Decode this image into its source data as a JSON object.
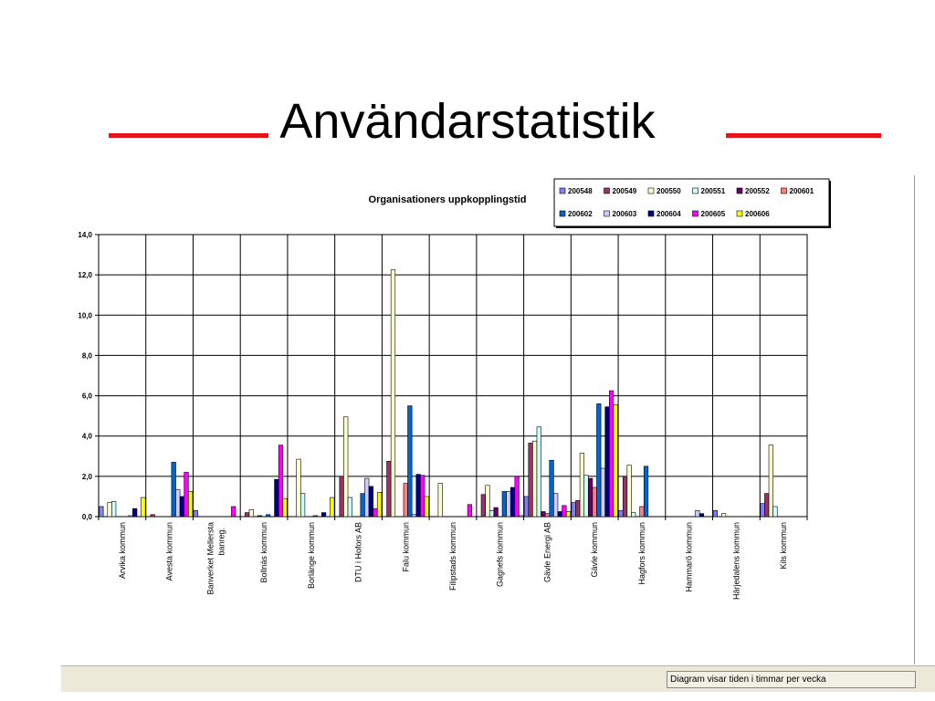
{
  "slide": {
    "title": "Användarstatistik",
    "accent_color": "#e8141b"
  },
  "status_bar": {
    "note": "Diagram visar tiden i timmar per vecka"
  },
  "chart_data": {
    "type": "bar",
    "title": "Organisationers uppkopplingstid",
    "xlabel": "",
    "ylabel": "",
    "ylim": [
      0,
      14
    ],
    "yticks": [
      "0,0",
      "2,0",
      "4,0",
      "6,0",
      "8,0",
      "10,0",
      "12,0",
      "14,0"
    ],
    "grid": true,
    "legend_position": "top-right",
    "categories": [
      "Arvika kommun",
      "Avesta kommun",
      "Banverket Mellersta banreg.",
      "Bollnäs kommun",
      "Borlänge kommun",
      "DTU i Hofors AB",
      "Falu kommun",
      "Filipstads kommun",
      "Gagnefs kommun",
      "Gävle Energi AB",
      "Gävle kommun",
      "Hagfors kommun",
      "Hammarö kommun",
      "Härjedalens kommun",
      "Kils kommun"
    ],
    "series": [
      {
        "name": "200548",
        "color": "#8080ff",
        "values": [
          0.5,
          0.0,
          0.3,
          0.0,
          0.0,
          0.0,
          0.0,
          0.0,
          0.0,
          1.0,
          0.7,
          0.3,
          0.0,
          0.3,
          0.65
        ]
      },
      {
        "name": "200549",
        "color": "#993366",
        "values": [
          0.0,
          0.1,
          0.0,
          0.2,
          0.0,
          2.0,
          2.75,
          0.0,
          1.1,
          3.65,
          0.8,
          2.0,
          0.0,
          0.0,
          1.15
        ]
      },
      {
        "name": "200550",
        "color": "#ffffcc",
        "values": [
          0.7,
          0.0,
          0.0,
          0.35,
          2.85,
          4.95,
          12.25,
          1.65,
          1.55,
          3.75,
          3.15,
          2.55,
          0.0,
          0.15,
          3.55
        ]
      },
      {
        "name": "200551",
        "color": "#ccffff",
        "values": [
          0.75,
          0.0,
          0.0,
          0.0,
          1.15,
          0.95,
          0.0,
          0.0,
          0.3,
          4.45,
          2.05,
          0.2,
          0.0,
          0.0,
          0.5
        ]
      },
      {
        "name": "200552",
        "color": "#660066",
        "values": [
          0.0,
          0.0,
          0.0,
          0.05,
          0.0,
          0.0,
          0.0,
          0.0,
          0.45,
          0.25,
          1.9,
          0.0,
          0.0,
          0.0,
          0.0
        ]
      },
      {
        "name": "200601",
        "color": "#ff8080",
        "values": [
          0.0,
          0.0,
          0.0,
          0.0,
          0.0,
          0.0,
          1.65,
          0.0,
          0.0,
          0.15,
          1.45,
          0.5,
          0.0,
          0.0,
          0.0
        ]
      },
      {
        "name": "200602",
        "color": "#0066cc",
        "values": [
          0.0,
          2.7,
          0.0,
          0.1,
          0.05,
          1.15,
          5.5,
          0.0,
          1.25,
          2.8,
          5.6,
          2.5,
          0.0,
          0.0,
          0.0
        ]
      },
      {
        "name": "200603",
        "color": "#ccccff",
        "values": [
          0.05,
          1.35,
          0.0,
          0.0,
          0.0,
          1.9,
          0.1,
          0.0,
          1.25,
          1.15,
          2.4,
          0.0,
          0.3,
          0.0,
          0.0
        ]
      },
      {
        "name": "200604",
        "color": "#000080",
        "values": [
          0.4,
          1.0,
          0.0,
          1.85,
          0.2,
          1.5,
          2.1,
          0.0,
          1.45,
          0.25,
          5.45,
          0.0,
          0.15,
          0.0,
          0.0
        ]
      },
      {
        "name": "200605",
        "color": "#ff00ff",
        "values": [
          0.0,
          2.2,
          0.5,
          3.55,
          0.0,
          0.4,
          2.05,
          0.6,
          2.0,
          0.55,
          6.25,
          0.0,
          0.0,
          0.0,
          0.0
        ]
      },
      {
        "name": "200606",
        "color": "#ffff00",
        "values": [
          0.95,
          1.25,
          0.0,
          0.9,
          0.95,
          1.2,
          1.0,
          0.0,
          0.05,
          0.25,
          5.55,
          0.0,
          0.0,
          0.0,
          0.0
        ]
      }
    ]
  }
}
